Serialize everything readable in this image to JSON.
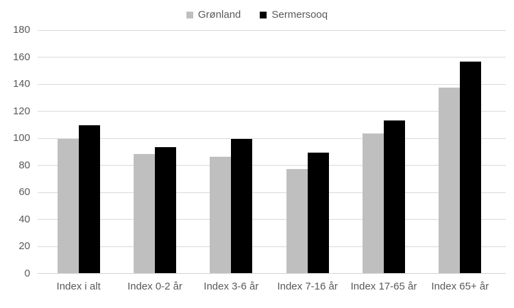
{
  "chart_data": {
    "type": "bar",
    "categories": [
      "Index i alt",
      "Index 0-2 år",
      "Index 3-6 år",
      "Index 7-16 år",
      "Index 17-65 år",
      "Index 65+ år"
    ],
    "series": [
      {
        "name": "Grønland",
        "color": "#bfbfbf",
        "values": [
          99,
          88,
          86,
          77,
          103,
          137
        ]
      },
      {
        "name": "Sermersooq",
        "color": "#000000",
        "values": [
          109,
          93,
          99,
          89,
          113,
          156
        ]
      }
    ],
    "title": "",
    "xlabel": "",
    "ylabel": "",
    "ylim": [
      0,
      180
    ],
    "y_ticks": [
      0,
      20,
      40,
      60,
      80,
      100,
      120,
      140,
      160,
      180
    ],
    "grid": "horizontal",
    "legend_position": "top",
    "colors": {
      "gridline": "#d9d9d9",
      "axis_line": "#d2d2d2",
      "axis_text": "#595959",
      "background": "#ffffff"
    }
  }
}
